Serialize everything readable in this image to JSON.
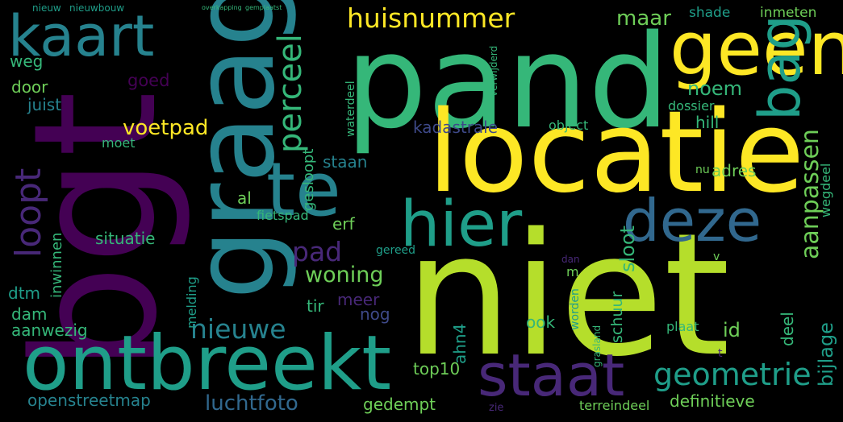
{
  "colors": {
    "background": "#000000",
    "yellow": "#fde725",
    "lime": "#b5de2b",
    "green": "#6ece58",
    "seagreen": "#35b779",
    "teal": "#1f9e89",
    "cyan": "#26828e",
    "blue": "#31688e",
    "indigo": "#3e4989",
    "violet": "#482878",
    "purple": "#440154"
  },
  "words": {
    "niet": "niet",
    "pand": "pand",
    "locatie": "locatie",
    "bgt": "bgt",
    "graag": "graag",
    "geen": "geen",
    "ontbreekt": "ontbreekt",
    "kaart": "kaart",
    "te": "te",
    "hier": "hier",
    "deze": "deze",
    "staat": "staat",
    "bag": "bag",
    "huisnummer": "huisnummer",
    "loopt": "loopt",
    "perceel": "perceel",
    "geometrie": "geometrie",
    "nieuwe": "nieuwe",
    "pad": "pad",
    "aanpassen": "aanpassen",
    "voetpad": "voetpad",
    "kadastrale": "kadastrale",
    "woning": "woning",
    "situatie": "situatie",
    "luchtfoto": "luchtfoto",
    "openstreetmap": "openstreetmap",
    "bijlage": "bijlage",
    "noem": "noem",
    "maar": "maar",
    "staan": "staan",
    "sloot": "sloot",
    "adres": "adres",
    "goed": "goed",
    "juist": "juist",
    "door": "door",
    "weg": "weg",
    "al": "al",
    "erf": "erf",
    "id": "id",
    "ook": "ook",
    "nog": "nog",
    "meer": "meer",
    "tir": "tir",
    "dtm": "dtm",
    "dam": "dam",
    "aanwezig": "aanwezig",
    "top10": "top10",
    "ahn4": "ahn4",
    "gedempt": "gedempt",
    "definitieve": "definitieve",
    "schuur": "schuur",
    "deel": "deel",
    "plaat": "plaat",
    "terreindeel": "terreindeel",
    "hill": "hill",
    "shade": "shade",
    "inmeten": "inmeten",
    "object": "object",
    "dossier": "dossier",
    "moet": "moet",
    "gesloopt": "gesloopt",
    "waterdeel": "waterdeel",
    "inwinnen": "inwinnen",
    "melding": "melding",
    "fietspad": "fietspad",
    "wegdeel": "wegdeel",
    "nu": "nu",
    "worden": "worden",
    "gereed": "gereed",
    "grasland": "grasland",
    "zie": "zie",
    "nieuw": "nieuw",
    "nieuwbouw": "nieuwbouw",
    "verwijderd": "verwijderd",
    "m": "m",
    "v": "v",
    "t": "t",
    "dan": "dan",
    "overkapping": "overkapping",
    "gemplaatst": "gemplaatst"
  }
}
